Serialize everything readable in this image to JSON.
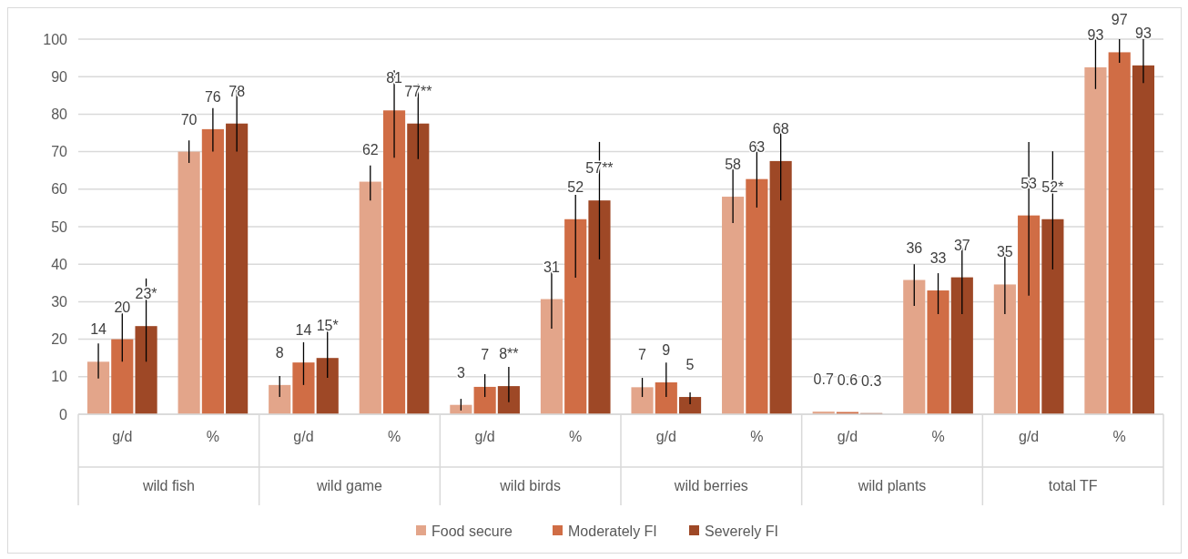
{
  "chart_data": {
    "type": "bar",
    "categories": [
      "g/d",
      "%",
      "g/d",
      "%",
      "g/d",
      "%",
      "g/d",
      "%",
      "g/d",
      "%",
      "g/d",
      "%"
    ],
    "annotations": [
      "wild fish",
      "wild game",
      "wild birds",
      "wild berries",
      "wild plants",
      "total TF"
    ],
    "series": [
      {
        "name": "Food secure",
        "color": "#e3a58a",
        "values": [
          14,
          70,
          7.8,
          62,
          2.5,
          30.7,
          7.2,
          58,
          0.7,
          35.8,
          34.6,
          92.5
        ],
        "errors": [
          [
            9.5,
            18.9
          ],
          [
            67,
            73
          ],
          [
            4.6,
            10.2
          ],
          [
            57,
            66.3
          ],
          [
            1,
            4.1
          ],
          [
            22.8,
            38.6
          ],
          [
            4.6,
            9.7
          ],
          [
            51,
            66.5
          ],
          null,
          [
            28.9,
            40
          ],
          [
            26.7,
            44.4
          ],
          [
            86.7,
            100
          ]
        ],
        "value_labels": [
          "14",
          "70",
          "8",
          "62",
          "3",
          "31",
          "7",
          "58",
          "0.7",
          "36",
          "35",
          "93"
        ]
      },
      {
        "name": "Moderately FI",
        "color": "#d06d45",
        "values": [
          20,
          76,
          13.8,
          81,
          7.3,
          52,
          8.5,
          62.7,
          0.6,
          33,
          53,
          96.5
        ],
        "errors": [
          [
            14,
            28.9
          ],
          [
            70,
            81.6
          ],
          [
            7.8,
            19.2
          ],
          [
            68.4,
            91.7
          ],
          [
            4.6,
            10.7
          ],
          [
            36.4,
            58.5
          ],
          [
            4.6,
            13.8
          ],
          [
            55.1,
            72.6
          ],
          null,
          [
            26.7,
            37.6
          ],
          [
            31.6,
            72.6
          ],
          [
            93.7,
            100
          ]
        ],
        "value_labels": [
          "20",
          "76",
          "14",
          "81",
          "7",
          "52",
          "9",
          "63",
          "0.6",
          "33",
          "53",
          "97"
        ]
      },
      {
        "name": "Severely FI",
        "color": "#9e4826",
        "values": [
          23.5,
          77.5,
          15,
          77.5,
          7.5,
          57,
          4.6,
          67.5,
          0.3,
          36.5,
          52,
          93
        ],
        "errors": [
          [
            14,
            36.2
          ],
          [
            70,
            86.4
          ],
          [
            9.7,
            22.6
          ],
          [
            68,
            88.1
          ],
          [
            3.2,
            12.6
          ],
          [
            41.3,
            72.6
          ],
          [
            2.7,
            5.8
          ],
          [
            57,
            77.4
          ],
          null,
          [
            26.7,
            44.4
          ],
          [
            38.6,
            70.1
          ],
          [
            88.3,
            100
          ]
        ],
        "value_labels": [
          "23*",
          "78",
          "15*",
          "77**",
          "8**",
          "57**",
          "5",
          "68",
          "0.3",
          "37",
          "52*",
          "93"
        ]
      }
    ],
    "ylim": [
      0,
      100
    ],
    "yticks": [
      0,
      10,
      20,
      30,
      40,
      50,
      60,
      70,
      80,
      90,
      100
    ],
    "grid": "y",
    "legend": "bottom"
  }
}
